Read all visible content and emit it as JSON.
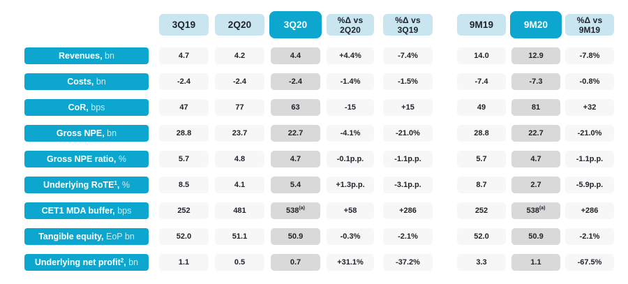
{
  "colors": {
    "accent_teal": "#0ca6ce",
    "header_light_blue": "#c9e5f0",
    "cell_gray": "#f7f7f7",
    "highlight_gray": "#d9d9d9",
    "text_dark": "#20242b",
    "label_suffix_tint": "#c9ecf6"
  },
  "chart_data": {
    "type": "table",
    "columns": [
      {
        "id": "3q19",
        "line1": "3Q19",
        "line2": "",
        "highlight": false
      },
      {
        "id": "2q20",
        "line1": "2Q20",
        "line2": "",
        "highlight": false
      },
      {
        "id": "3q20",
        "line1": "3Q20",
        "line2": "",
        "highlight": true
      },
      {
        "id": "delta-vs-2q20",
        "line1": "%Δ vs",
        "line2": "2Q20",
        "highlight": false
      },
      {
        "id": "delta-vs-3q19",
        "line1": "%Δ vs",
        "line2": "3Q19",
        "highlight": false
      },
      {
        "id": "9m19",
        "line1": "9M19",
        "line2": "",
        "highlight": false
      },
      {
        "id": "9m20",
        "line1": "9M20",
        "line2": "",
        "highlight": true
      },
      {
        "id": "delta-vs-9m19",
        "line1": "%Δ vs",
        "line2": "9M19",
        "highlight": false
      }
    ],
    "rows": [
      {
        "label": "Revenues",
        "sup": "",
        "comma": ",",
        "suffix": " bn",
        "values": [
          "4.7",
          "4.2",
          "4.4",
          "+4.4%",
          "-7.4%",
          "14.0",
          "12.9",
          "-7.8%"
        ]
      },
      {
        "label": "Costs",
        "sup": "",
        "comma": ",",
        "suffix": " bn",
        "values": [
          "-2.4",
          "-2.4",
          "-2.4",
          "-1.4%",
          "-1.5%",
          "-7.4",
          "-7.3",
          "-0.8%"
        ]
      },
      {
        "label": "CoR",
        "sup": "",
        "comma": ",",
        "suffix": " bps",
        "values": [
          "47",
          "77",
          "63",
          "-15",
          "+15",
          "49",
          "81",
          "+32"
        ]
      },
      {
        "label": "Gross NPE",
        "sup": "",
        "comma": ",",
        "suffix": " bn",
        "values": [
          "28.8",
          "23.7",
          "22.7",
          "-4.1%",
          "-21.0%",
          "28.8",
          "22.7",
          "-21.0%"
        ]
      },
      {
        "label": "Gross NPE ratio",
        "sup": "",
        "comma": ",",
        "suffix": " %",
        "values": [
          "5.7",
          "4.8",
          "4.7",
          "-0.1p.p.",
          "-1.1p.p.",
          "5.7",
          "4.7",
          "-1.1p.p."
        ]
      },
      {
        "label": "Underlying RoTE",
        "sup": "1",
        "comma": ",",
        "suffix": " %",
        "values": [
          "8.5",
          "4.1",
          "5.4",
          "+1.3p.p.",
          "-3.1p.p.",
          "8.7",
          "2.7",
          "-5.9p.p."
        ]
      },
      {
        "label": "CET1 MDA buffer",
        "sup": "",
        "comma": ",",
        "suffix": " bps",
        "values": [
          "252",
          "481",
          "538",
          "+58",
          "+286",
          "252",
          "538",
          "+286"
        ],
        "sups": {
          "2": "(a)",
          "6": "(a)"
        }
      },
      {
        "label": "Tangible equity",
        "sup": "",
        "comma": ",",
        "suffix": " EoP bn",
        "values": [
          "52.0",
          "51.1",
          "50.9",
          "-0.3%",
          "-2.1%",
          "52.0",
          "50.9",
          "-2.1%"
        ]
      },
      {
        "label": "Underlying net profit",
        "sup": "2",
        "comma": ",",
        "suffix": " bn",
        "values": [
          "1.1",
          "0.5",
          "0.7",
          "+31.1%",
          "-37.2%",
          "3.3",
          "1.1",
          "-67.5%"
        ]
      }
    ]
  }
}
